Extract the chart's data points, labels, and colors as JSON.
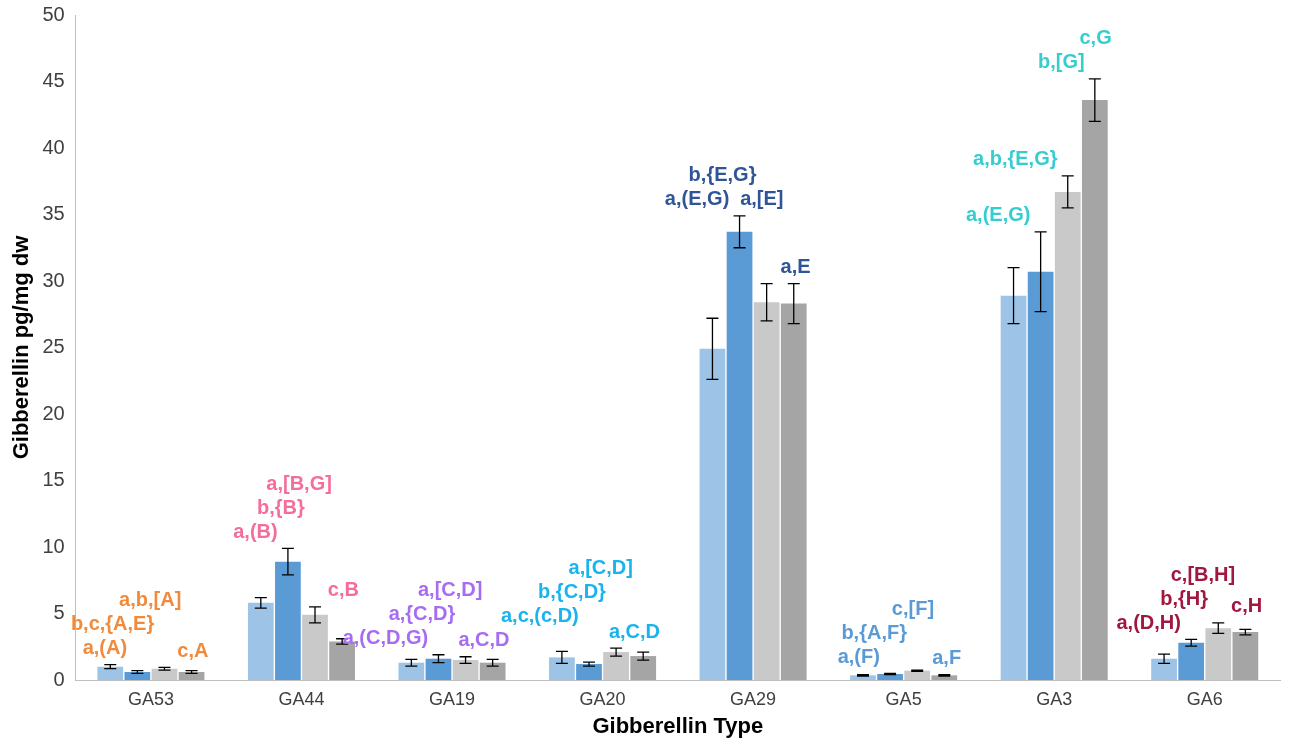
{
  "chart_data": {
    "type": "bar",
    "xlabel": "Gibberellin Type",
    "ylabel": "Gibberellin pg/mg dw",
    "categories": [
      "GA53",
      "GA44",
      "GA19",
      "GA20",
      "GA29",
      "GA5",
      "GA3",
      "GA6"
    ],
    "series": [
      {
        "color": "#9dc3e6",
        "values": [
          1.0,
          5.8,
          1.3,
          1.7,
          24.9,
          0.35,
          28.9,
          1.6
        ],
        "errors": [
          0.15,
          0.4,
          0.25,
          0.45,
          2.3,
          0.05,
          2.1,
          0.35
        ]
      },
      {
        "color": "#5b9bd5",
        "values": [
          0.6,
          8.9,
          1.6,
          1.2,
          33.7,
          0.45,
          30.7,
          2.8
        ],
        "errors": [
          0.1,
          1.0,
          0.3,
          0.15,
          1.2,
          0.05,
          3.0,
          0.25
        ]
      },
      {
        "color": "#c9c9c9",
        "values": [
          0.85,
          4.9,
          1.5,
          2.1,
          28.4,
          0.7,
          36.7,
          3.9
        ],
        "errors": [
          0.1,
          0.6,
          0.25,
          0.3,
          1.4,
          0.05,
          1.2,
          0.4
        ]
      },
      {
        "color": "#a5a5a5",
        "values": [
          0.6,
          2.9,
          1.3,
          1.8,
          28.3,
          0.35,
          43.6,
          3.6
        ],
        "errors": [
          0.1,
          0.2,
          0.25,
          0.3,
          1.5,
          0.05,
          1.6,
          0.2
        ]
      }
    ],
    "ylim": [
      0,
      50
    ],
    "yticks": [
      0,
      5,
      10,
      15,
      20,
      25,
      30,
      35,
      40,
      45,
      50
    ],
    "grid": false,
    "legend": false,
    "annotations": [
      "a,(A)",
      "b,c,{A,E}",
      "a,b,[A]",
      "c,A",
      "a,(B)",
      "b,{B}",
      "a,[B,G]",
      "c,B",
      "a,(C,D,G)",
      "a,{C,D}",
      "a,[C,D]",
      "a,C,D",
      "a,c,(c,D)",
      "b,{C,D}",
      "a,[C,D]",
      "a,C,D",
      "a,(E,G)",
      "b,{E,G}",
      "a,[E]",
      "a,E",
      "a,(F)",
      "b,{A,F}",
      "c,[F]",
      "a,F",
      "a,(E,G)",
      "a,b,{E,G}",
      "b,[G]",
      "c,G",
      "a,(D,H)",
      "b,{H}",
      "c,[B,H]",
      "c,H"
    ]
  }
}
